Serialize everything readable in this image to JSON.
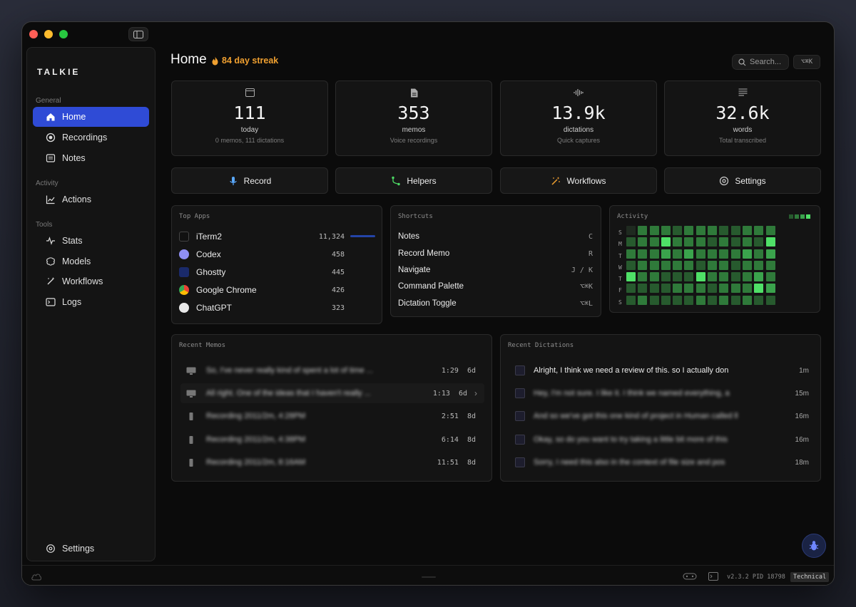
{
  "sidebar": {
    "brand": "TALKIE",
    "sections": [
      {
        "label": "General",
        "items": [
          {
            "label": "Home",
            "icon": "home-icon",
            "active": true
          },
          {
            "label": "Recordings",
            "icon": "record-circle-icon"
          },
          {
            "label": "Notes",
            "icon": "notes-icon"
          }
        ]
      },
      {
        "label": "Activity",
        "items": [
          {
            "label": "Actions",
            "icon": "chart-line-icon"
          }
        ]
      },
      {
        "label": "Tools",
        "items": [
          {
            "label": "Stats",
            "icon": "pulse-icon"
          },
          {
            "label": "Models",
            "icon": "brain-icon"
          },
          {
            "label": "Workflows",
            "icon": "wand-icon"
          },
          {
            "label": "Logs",
            "icon": "terminal-icon"
          }
        ]
      }
    ],
    "settings_label": "Settings"
  },
  "header": {
    "title": "Home",
    "streak": "84 day streak",
    "search_placeholder": "Search...",
    "search_shortcut": "⌥⌘K"
  },
  "stats": [
    {
      "value": "111",
      "label": "today",
      "sub": "0 memos, 111 dictations",
      "icon": "calendar-icon"
    },
    {
      "value": "353",
      "label": "memos",
      "sub": "Voice recordings",
      "icon": "document-icon"
    },
    {
      "value": "13.9k",
      "label": "dictations",
      "sub": "Quick captures",
      "icon": "waveform-icon"
    },
    {
      "value": "32.6k",
      "label": "words",
      "sub": "Total transcribed",
      "icon": "text-lines-icon"
    }
  ],
  "actions": [
    {
      "label": "Record",
      "icon": "microphone-icon",
      "color": "#5aa9ff"
    },
    {
      "label": "Helpers",
      "icon": "branch-icon",
      "color": "#4cd964"
    },
    {
      "label": "Workflows",
      "icon": "wand-icon",
      "color": "#f0a030"
    },
    {
      "label": "Settings",
      "icon": "gear-icon",
      "color": "#d0d0d0"
    }
  ],
  "top_apps": {
    "title": "Top Apps",
    "apps": [
      {
        "name": "iTerm2",
        "count": "11,324",
        "icon": "iterm-icon",
        "share": 1.0
      },
      {
        "name": "Codex",
        "count": "458",
        "icon": "codex-icon",
        "share": 0.04
      },
      {
        "name": "Ghostty",
        "count": "445",
        "icon": "ghostty-icon",
        "share": 0.04
      },
      {
        "name": "Google Chrome",
        "count": "426",
        "icon": "chrome-icon",
        "share": 0.04
      },
      {
        "name": "ChatGPT",
        "count": "323",
        "icon": "chatgpt-icon",
        "share": 0.03
      }
    ]
  },
  "shortcuts": {
    "title": "Shortcuts",
    "items": [
      {
        "name": "Notes",
        "key": "C"
      },
      {
        "name": "Record Memo",
        "key": "R"
      },
      {
        "name": "Navigate",
        "key": "J / K"
      },
      {
        "name": "Command Palette",
        "key": "⌥⌘K"
      },
      {
        "name": "Dictation Toggle",
        "key": "⌥⌘L"
      }
    ]
  },
  "activity": {
    "title": "Activity",
    "days": [
      "S",
      "M",
      "T",
      "W",
      "T",
      "F",
      "S"
    ],
    "levels": [
      [
        0,
        2,
        2,
        2,
        1,
        2,
        2,
        2,
        1,
        1,
        2,
        2,
        2
      ],
      [
        1,
        2,
        2,
        4,
        2,
        2,
        2,
        1,
        2,
        1,
        2,
        1,
        4
      ],
      [
        2,
        2,
        2,
        3,
        2,
        3,
        2,
        2,
        2,
        2,
        3,
        2,
        3
      ],
      [
        1,
        2,
        2,
        2,
        2,
        2,
        1,
        2,
        2,
        1,
        2,
        2,
        2
      ],
      [
        4,
        2,
        2,
        1,
        1,
        1,
        4,
        2,
        2,
        1,
        2,
        3,
        2
      ],
      [
        1,
        1,
        1,
        1,
        2,
        2,
        2,
        1,
        2,
        2,
        2,
        4,
        3
      ],
      [
        1,
        2,
        1,
        1,
        1,
        1,
        2,
        1,
        2,
        1,
        2,
        1,
        1
      ]
    ]
  },
  "recent_memos": {
    "title": "Recent Memos",
    "items": [
      {
        "title": "So, I've never really kind of spent a lot of time ...",
        "duration": "1:29",
        "age": "6d",
        "type": "monitor"
      },
      {
        "title": "All right. One of the ideas that I haven't really ...",
        "duration": "1:13",
        "age": "6d",
        "type": "monitor",
        "selected": true
      },
      {
        "title": "Recording 2011/2m, 4:28PM",
        "duration": "2:51",
        "age": "8d",
        "type": "phone"
      },
      {
        "title": "Recording 2011/2m, 4:38PM",
        "duration": "6:14",
        "age": "8d",
        "type": "phone"
      },
      {
        "title": "Recording 2011/2m, 8:16AM",
        "duration": "11:51",
        "age": "8d",
        "type": "phone"
      }
    ]
  },
  "recent_dictations": {
    "title": "Recent Dictations",
    "items": [
      {
        "text": "Alright, I think we need a review of this. so I actually don",
        "age": "1m",
        "blurred": false
      },
      {
        "text": "Hey, I'm not sure. I like it. I think we named everything, a",
        "age": "15m",
        "blurred": true
      },
      {
        "text": "And so we've got this one kind of project in Human called ll",
        "age": "16m",
        "blurred": true
      },
      {
        "text": "Okay, so do you want to try taking a little bit more of this",
        "age": "16m",
        "blurred": true
      },
      {
        "text": "Sorry, I need this also in the context of file size and pos",
        "age": "18m",
        "blurred": true
      }
    ]
  },
  "statusbar": {
    "version": "v2.3.2 PID 18798",
    "mode": "Technical"
  },
  "colors": {
    "accent": "#2f4bd6",
    "streak": "#f0a030",
    "activity_scale": [
      "#1f2a20",
      "#275a2e",
      "#2f7a3a",
      "#3aa34c",
      "#4fe067"
    ]
  }
}
